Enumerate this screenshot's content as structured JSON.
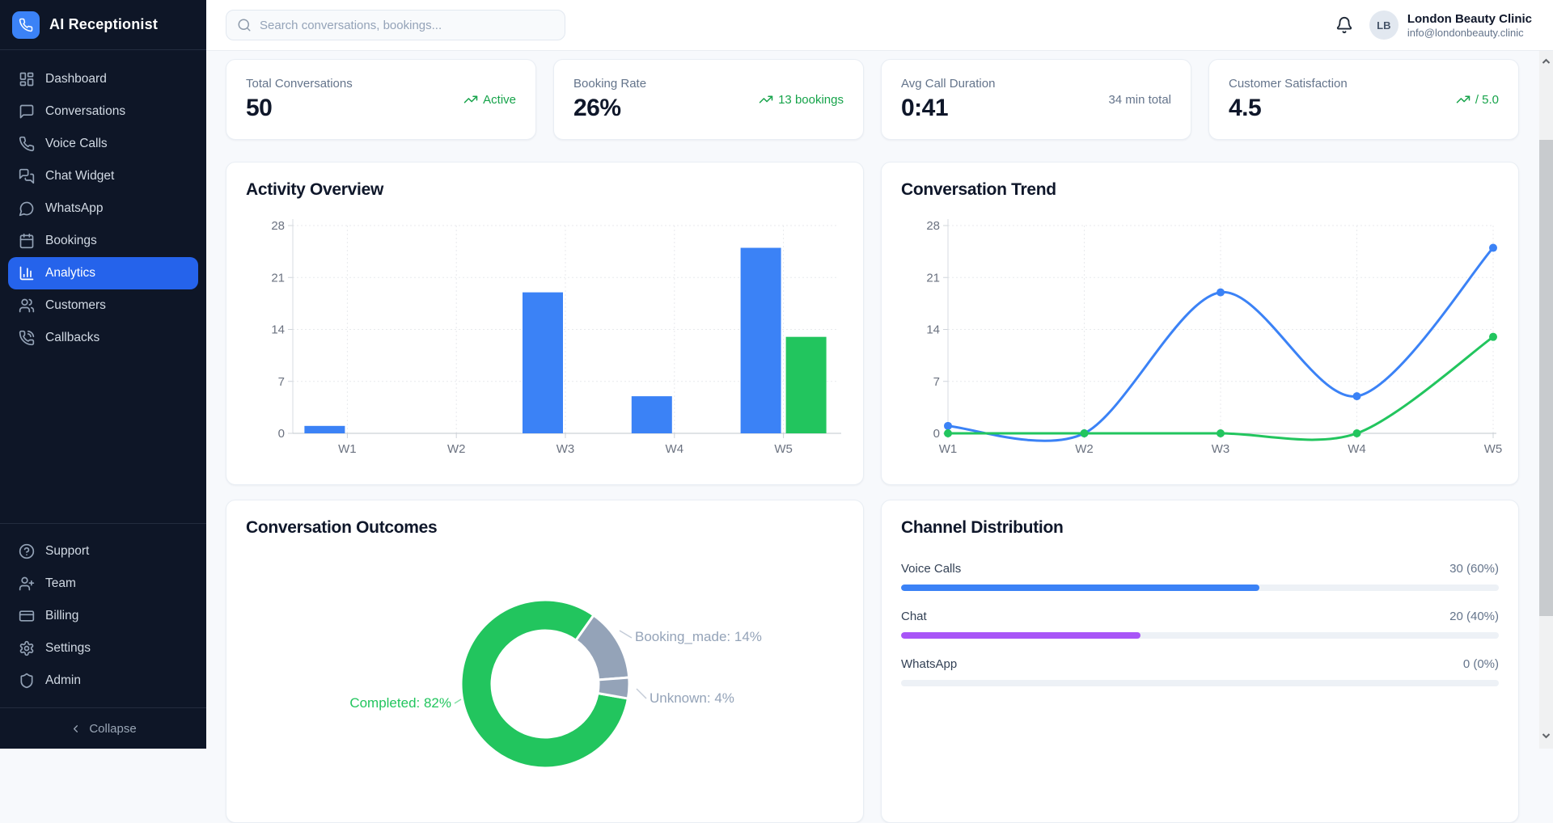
{
  "app": {
    "title": "AI Receptionist"
  },
  "sidebar": {
    "items": [
      {
        "label": "Dashboard",
        "active": false
      },
      {
        "label": "Conversations",
        "active": false
      },
      {
        "label": "Voice Calls",
        "active": false
      },
      {
        "label": "Chat Widget",
        "active": false
      },
      {
        "label": "WhatsApp",
        "active": false
      },
      {
        "label": "Bookings",
        "active": false
      },
      {
        "label": "Analytics",
        "active": true
      },
      {
        "label": "Customers",
        "active": false
      },
      {
        "label": "Callbacks",
        "active": false
      }
    ],
    "secondary_items": [
      {
        "label": "Support"
      },
      {
        "label": "Team"
      },
      {
        "label": "Billing"
      },
      {
        "label": "Settings"
      },
      {
        "label": "Admin"
      }
    ],
    "collapse_label": "Collapse"
  },
  "topbar": {
    "search_placeholder": "Search conversations, bookings...",
    "account": {
      "initials": "LB",
      "name": "London Beauty Clinic",
      "email": "info@londonbeauty.clinic"
    }
  },
  "stats": [
    {
      "label": "Total Conversations",
      "value": "50",
      "badge": "Active",
      "badge_type": "success"
    },
    {
      "label": "Booking Rate",
      "value": "26%",
      "badge": "13 bookings",
      "badge_type": "success"
    },
    {
      "label": "Avg Call Duration",
      "value": "0:41",
      "badge": "34 min total",
      "badge_type": "muted"
    },
    {
      "label": "Customer Satisfaction",
      "value": "4.5",
      "badge": "/ 5.0",
      "badge_type": "success"
    }
  ],
  "chart_data": [
    {
      "type": "bar",
      "title": "Activity Overview",
      "categories": [
        "W1",
        "W2",
        "W3",
        "W4",
        "W5"
      ],
      "series": [
        {
          "color": "#3b82f6",
          "values": [
            1,
            0,
            19,
            5,
            25
          ]
        },
        {
          "color": "#22c55e",
          "values": [
            0,
            0,
            0,
            0,
            13
          ]
        }
      ],
      "ylim": [
        0,
        28
      ],
      "yticks": [
        0,
        7,
        14,
        21,
        28
      ],
      "grid": true,
      "legend": "none"
    },
    {
      "type": "line",
      "title": "Conversation Trend",
      "categories": [
        "W1",
        "W2",
        "W3",
        "W4",
        "W5"
      ],
      "series": [
        {
          "color": "#3b82f6",
          "values": [
            1,
            0,
            19,
            5,
            25
          ]
        },
        {
          "color": "#22c55e",
          "values": [
            0,
            0,
            0,
            0,
            13
          ]
        }
      ],
      "ylim": [
        0,
        28
      ],
      "yticks": [
        0,
        7,
        14,
        21,
        28
      ],
      "grid": true,
      "legend": "none"
    },
    {
      "type": "pie",
      "title": "Conversation Outcomes",
      "slices": [
        {
          "label": "Completed",
          "pct": 82,
          "color": "#22c55e"
        },
        {
          "label": "Booking_made",
          "pct": 14,
          "color": "#94a3b8"
        },
        {
          "label": "Unknown",
          "pct": 4,
          "color": "#94a3b8"
        }
      ],
      "donut": true
    },
    {
      "type": "bar",
      "title": "Channel Distribution",
      "orientation": "horizontal-progress",
      "rows": [
        {
          "label": "Voice Calls",
          "value": "30 (60%)",
          "pct": 60,
          "color": "#3b82f6"
        },
        {
          "label": "Chat",
          "value": "20 (40%)",
          "pct": 40,
          "color": "#a855f7"
        },
        {
          "label": "WhatsApp",
          "value": "0 (0%)",
          "pct": 0,
          "color": "#3b82f6"
        }
      ]
    }
  ]
}
